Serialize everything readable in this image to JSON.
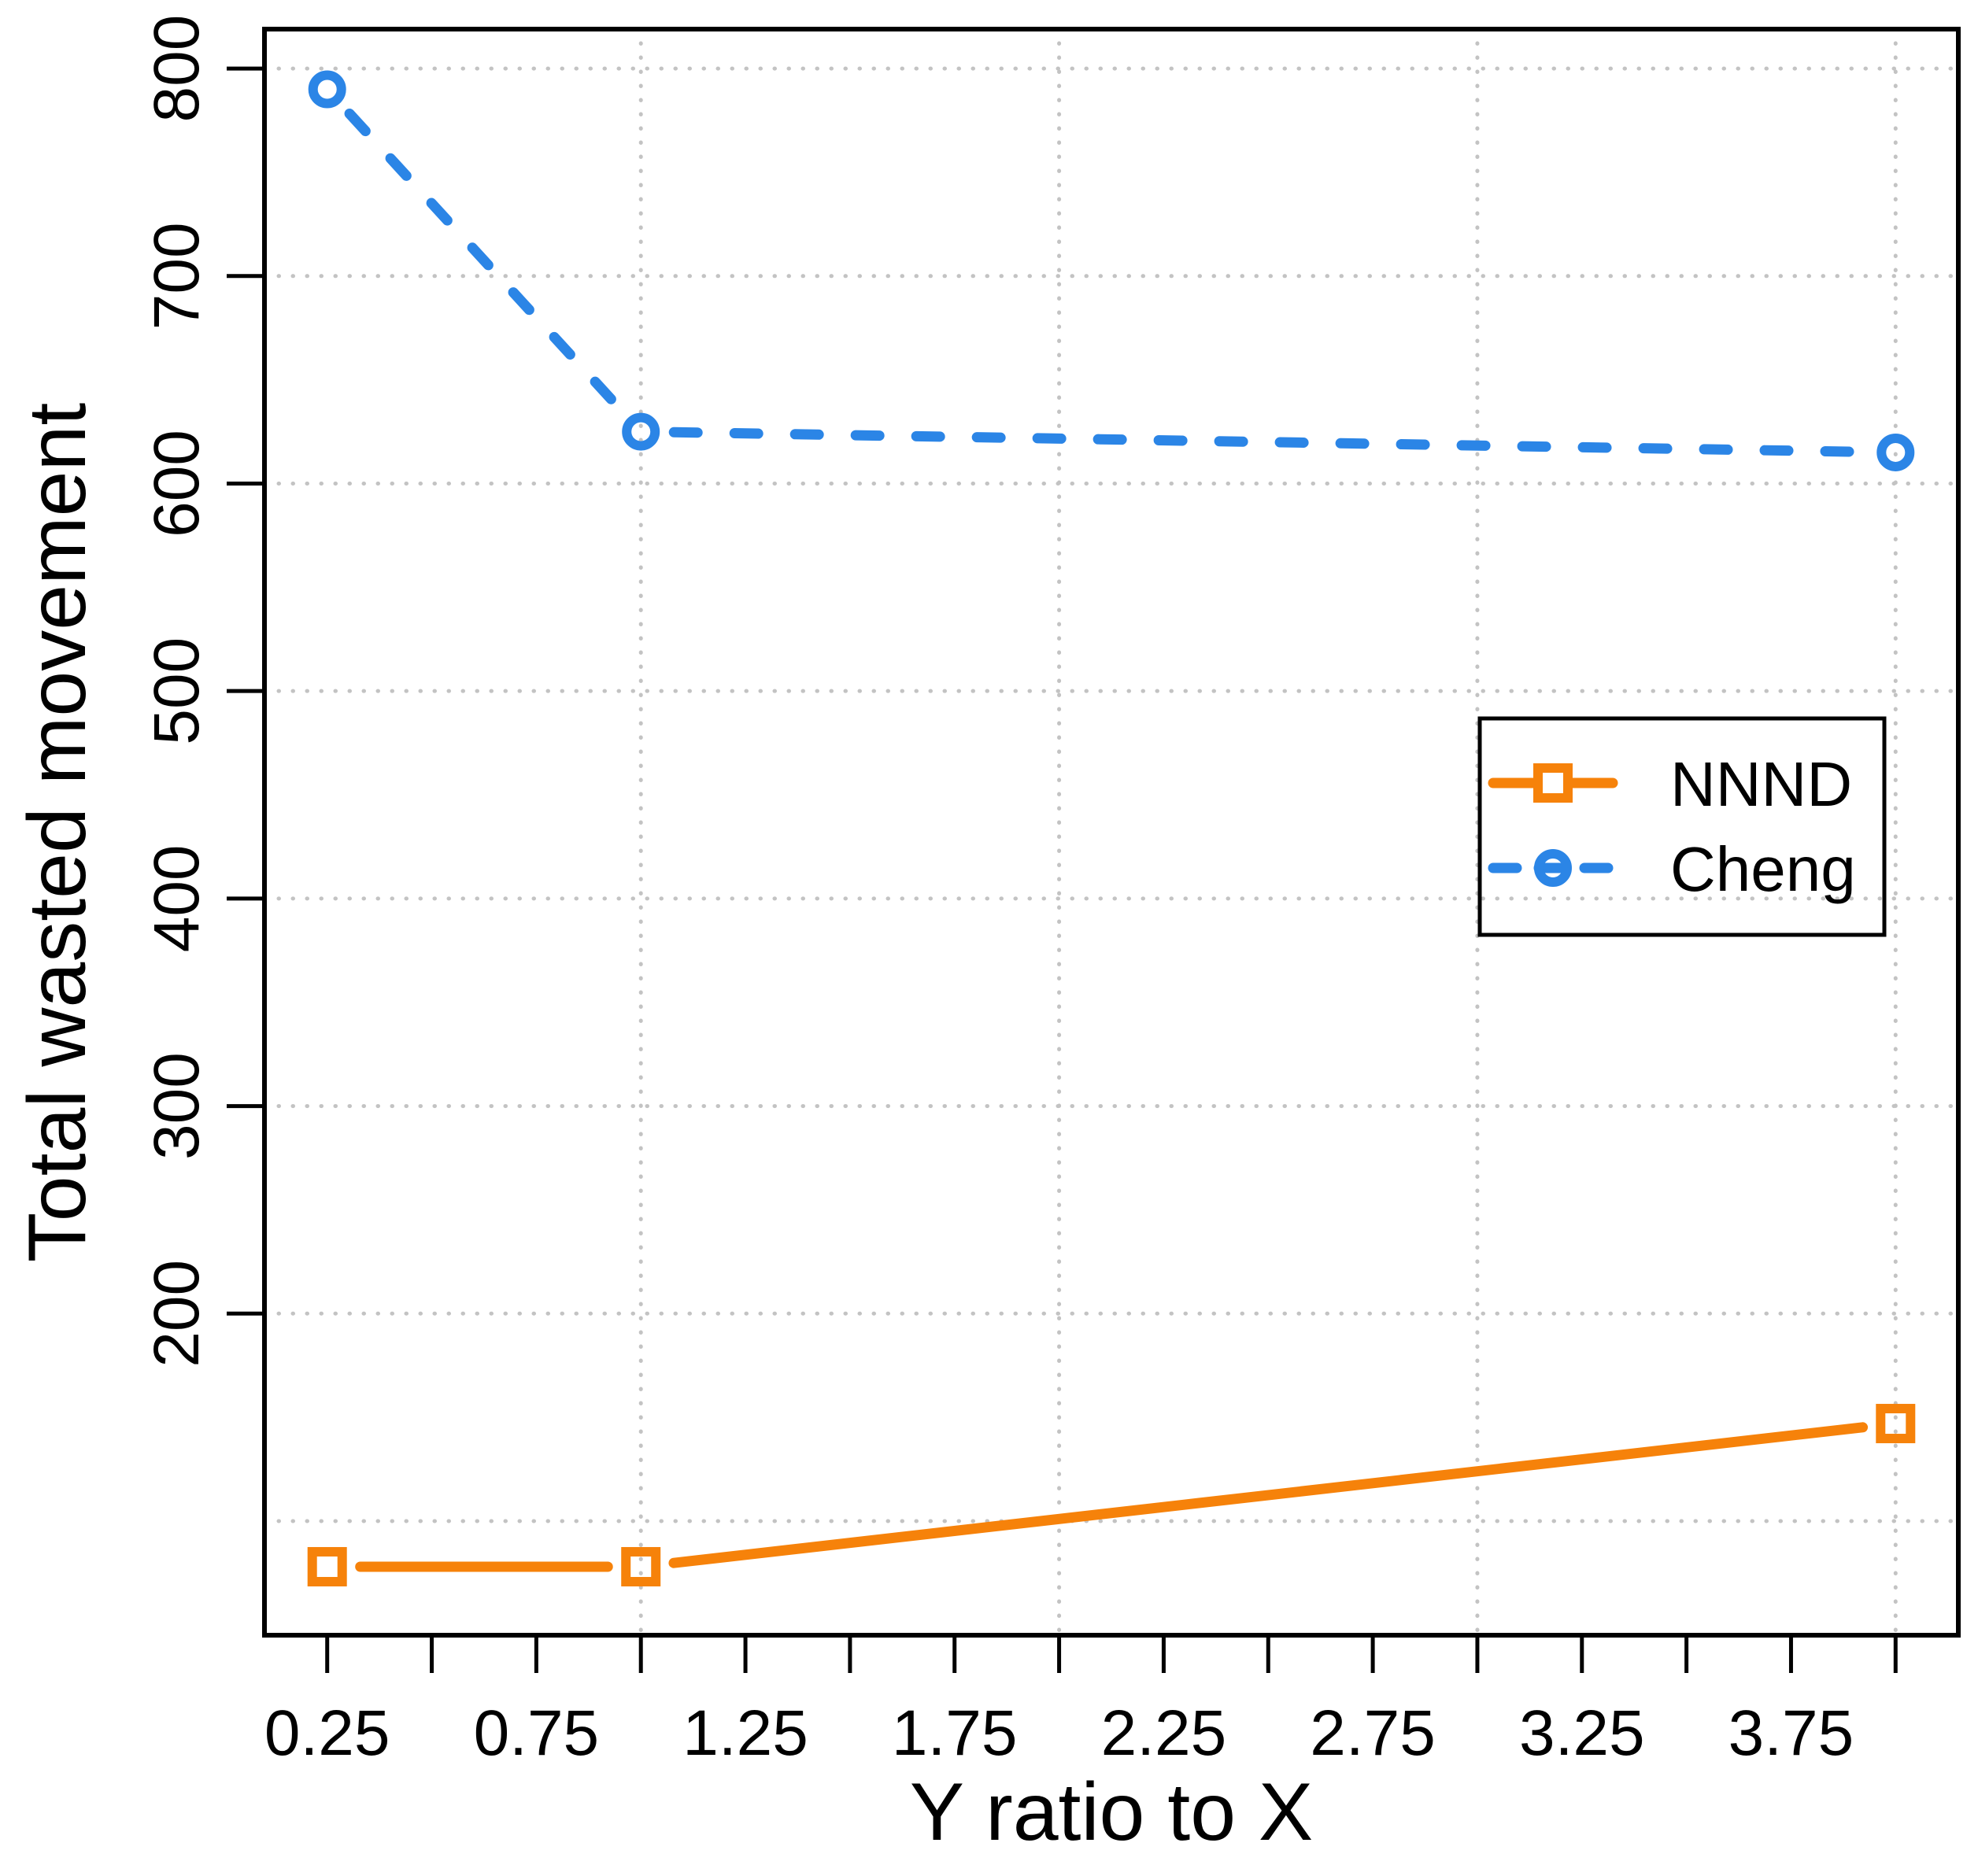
{
  "chart_data": {
    "type": "line",
    "title": "",
    "xlabel": "Y ratio to X",
    "ylabel": "Total wasted movement",
    "xlim": [
      0.1,
      4.15
    ],
    "ylim": [
      45,
      819
    ],
    "grid": true,
    "x_tick_values": [
      0.25,
      0.5,
      0.75,
      1.0,
      1.25,
      1.5,
      1.75,
      2.0,
      2.25,
      2.5,
      2.75,
      3.0,
      3.25,
      3.5,
      3.75,
      4.0
    ],
    "x_tick_labels": [
      "0.25",
      "",
      "0.75",
      "",
      "1.25",
      "",
      "1.75",
      "",
      "2.25",
      "",
      "2.75",
      "",
      "3.25",
      "",
      "3.75",
      ""
    ],
    "y_tick_values": [
      200,
      300,
      400,
      500,
      600,
      700,
      800
    ],
    "y_tick_labels": [
      "200",
      "300",
      "400",
      "500",
      "600",
      "700",
      "800"
    ],
    "x_gridlines": [
      1,
      2,
      3,
      4
    ],
    "y_gridlines": [
      100,
      200,
      300,
      400,
      500,
      600,
      700,
      800
    ],
    "legend": {
      "position": "right-center",
      "items": [
        "NNND",
        "Cheng"
      ]
    },
    "series": [
      {
        "name": "NNND",
        "color": "#F6820A",
        "marker": "square",
        "line": "solid",
        "x": [
          0.25,
          1.0,
          4.0
        ],
        "values": [
          78,
          78,
          147
        ]
      },
      {
        "name": "Cheng",
        "color": "#2B85E6",
        "marker": "circle",
        "line": "dashed",
        "x": [
          0.25,
          1.0,
          4.0
        ],
        "values": [
          790,
          625,
          615
        ]
      }
    ],
    "colors": {
      "axis": "#000000",
      "grid": "#c3c3c3",
      "text": "#000000",
      "background": "#ffffff"
    }
  }
}
